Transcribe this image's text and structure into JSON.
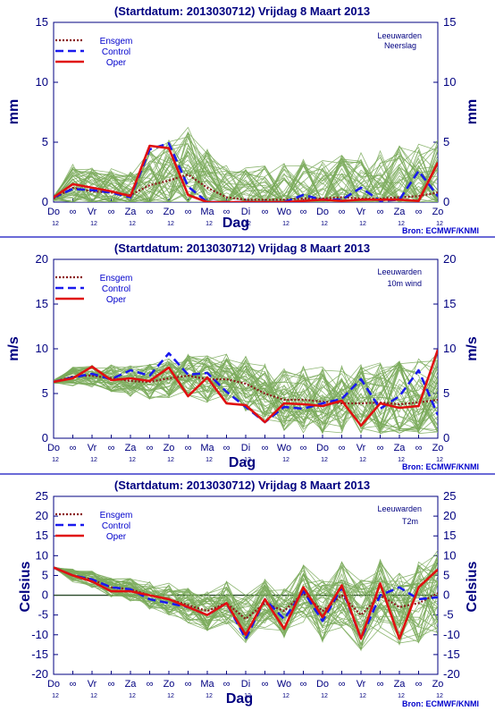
{
  "colors": {
    "frame": "#000080",
    "ensemble_member": "#7aaa5a",
    "ensgem": "#8b1a1a",
    "control": "#1a1aee",
    "oper": "#e01010",
    "separator": "#3a3acc"
  },
  "source_label": "Bron: ECMWF/KNMI",
  "legend_entries": [
    "Ensgem",
    "Control",
    "Oper"
  ],
  "day_labels": [
    "Do",
    "Vr",
    "Za",
    "Zo",
    "Ma",
    "Di",
    "Wo",
    "Do",
    "Vr",
    "Za",
    "Zo"
  ],
  "hour_label": "12",
  "night_symbol": "∞",
  "chart_data": [
    {
      "type": "line",
      "title": "(Startdatum: 2013030712)   Vrijdag    8 Maart     2013",
      "station": "Leeuwarden",
      "variable": "Neerslag",
      "xlabel": "Dag",
      "ylabel": "mm",
      "ylim": [
        0,
        15
      ],
      "yticks": [
        0,
        5,
        10,
        15
      ],
      "grid": false,
      "legend_position": "top-left",
      "x": [
        0,
        0.5,
        1,
        1.5,
        2,
        2.5,
        3,
        3.5,
        4,
        4.5,
        5,
        5.5,
        6,
        6.5,
        7,
        7.5,
        8,
        8.5,
        9,
        9.5,
        10
      ],
      "series": [
        {
          "name": "Ensgem",
          "values": [
            0.3,
            1.2,
            0.9,
            0.8,
            0.6,
            1.4,
            1.8,
            2.3,
            1.2,
            0.4,
            0.2,
            0.2,
            0.2,
            0.3,
            0.3,
            0.4,
            0.3,
            0.3,
            0.4,
            0.5,
            0.8
          ]
        },
        {
          "name": "Control",
          "values": [
            0.4,
            1.1,
            1.0,
            0.8,
            0.4,
            4.4,
            4.9,
            1.3,
            0,
            0,
            0,
            0,
            0,
            0.6,
            0.2,
            0.2,
            1.2,
            0.1,
            0.2,
            2.6,
            0.5
          ]
        },
        {
          "name": "Oper",
          "values": [
            0.4,
            1.5,
            1.2,
            0.9,
            0.5,
            4.7,
            4.5,
            0.6,
            0,
            0,
            0,
            0,
            0,
            0.1,
            0.2,
            0.1,
            0.2,
            0.2,
            0.2,
            0.1,
            3.3
          ]
        }
      ]
    },
    {
      "type": "line",
      "title": "(Startdatum: 2013030712)   Vrijdag    8 Maart     2013",
      "station": "Leeuwarden",
      "variable": "10m wind",
      "xlabel": "Dag",
      "ylabel": "m/s",
      "ylim": [
        0,
        20
      ],
      "yticks": [
        0,
        5,
        10,
        15,
        20
      ],
      "grid": false,
      "legend_position": "top-left",
      "x": [
        0,
        0.5,
        1,
        1.5,
        2,
        2.5,
        3,
        3.5,
        4,
        4.5,
        5,
        5.5,
        6,
        6.5,
        7,
        7.5,
        8,
        8.5,
        9,
        9.5,
        10
      ],
      "series": [
        {
          "name": "Ensgem",
          "values": [
            6.3,
            6.9,
            7.0,
            6.7,
            6.4,
            6.3,
            6.7,
            7.0,
            6.6,
            6.6,
            6.1,
            5.0,
            4.3,
            4.3,
            4.1,
            3.9,
            3.9,
            4.0,
            3.8,
            4.0,
            4.3
          ]
        },
        {
          "name": "Control",
          "values": [
            6.3,
            6.8,
            7.2,
            6.6,
            7.6,
            7.0,
            9.5,
            7.1,
            7.3,
            5.2,
            3.5,
            1.8,
            3.5,
            3.3,
            3.9,
            4.4,
            6.6,
            3.3,
            4.7,
            7.6,
            2.6
          ]
        },
        {
          "name": "Oper",
          "values": [
            6.3,
            6.7,
            8.0,
            6.5,
            6.7,
            6.4,
            7.9,
            4.7,
            6.8,
            3.9,
            3.7,
            1.8,
            3.9,
            3.8,
            3.6,
            4.2,
            1.4,
            3.9,
            3.4,
            3.6,
            9.9
          ]
        }
      ]
    },
    {
      "type": "line",
      "title": "(Startdatum: 2013030712)   Vrijdag    8 Maart     2013",
      "station": "Leeuwarden",
      "variable": "T2m",
      "xlabel": "Dag",
      "ylabel": "Celsius",
      "ylim": [
        -20,
        25
      ],
      "yticks": [
        -20,
        -15,
        -10,
        -5,
        0,
        5,
        10,
        15,
        20,
        25
      ],
      "grid": false,
      "legend_position": "top-left",
      "x": [
        0,
        0.5,
        1,
        1.5,
        2,
        2.5,
        3,
        3.5,
        4,
        4.5,
        5,
        5.5,
        6,
        6.5,
        7,
        7.5,
        8,
        8.5,
        9,
        9.5,
        10
      ],
      "series": [
        {
          "name": "Ensgem",
          "values": [
            7.0,
            5.0,
            4.0,
            2.0,
            1.5,
            0,
            -1.0,
            -2.5,
            -4.0,
            -2.0,
            -6.0,
            -2.0,
            -4.0,
            0.5,
            -4.0,
            0,
            -5.0,
            0,
            -3.0,
            -2.0,
            0.5
          ]
        },
        {
          "name": "Control",
          "values": [
            7.0,
            5.0,
            4.0,
            2.0,
            1.5,
            -1.0,
            -2.0,
            -3.0,
            -5.0,
            -2.0,
            -11.0,
            -1.0,
            -6.0,
            1.0,
            -6.5,
            2.0,
            -11.0,
            0,
            2.0,
            -1.0,
            -0.5
          ]
        },
        {
          "name": "Oper",
          "values": [
            7.0,
            5.0,
            3.5,
            1.0,
            1.0,
            0,
            -1.0,
            -3.0,
            -5.0,
            -2.0,
            -10.0,
            -1.0,
            -8.5,
            2.0,
            -5.5,
            2.5,
            -11.0,
            3.0,
            -11.0,
            2.0,
            6.5
          ]
        }
      ]
    }
  ]
}
